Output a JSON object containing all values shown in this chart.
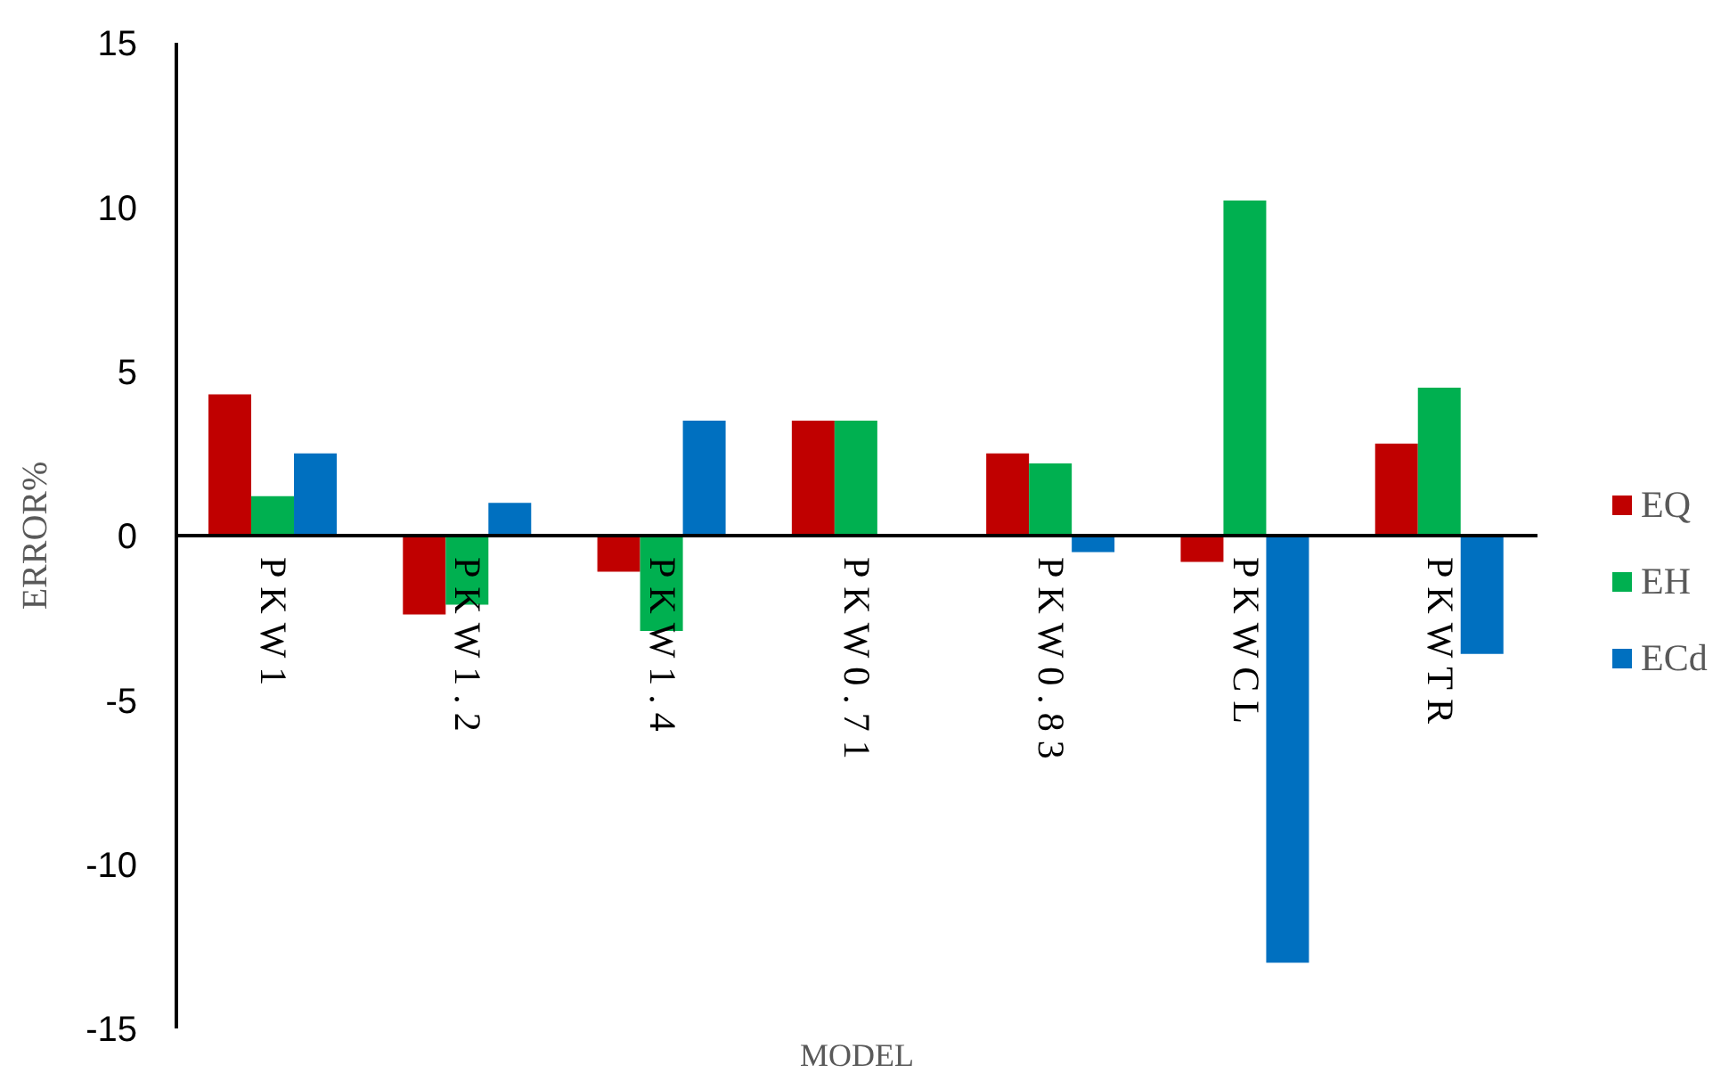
{
  "chart_data": {
    "type": "bar",
    "xlabel": "MODEL",
    "ylabel": "ERROR%",
    "categories": [
      "PKW1",
      "PKW1.2",
      "PKW1.4",
      "PKW0.71",
      "PKW0.83",
      "PKWCL",
      "PKWTR"
    ],
    "series": [
      {
        "name": "EQ",
        "color": "#c00000",
        "values": [
          4.3,
          -2.4,
          -1.1,
          3.5,
          2.5,
          -0.8,
          2.8
        ]
      },
      {
        "name": "EH",
        "color": "#00b050",
        "values": [
          1.2,
          -2.1,
          -2.9,
          3.5,
          2.2,
          10.2,
          4.5
        ]
      },
      {
        "name": "ECd",
        "color": "#0070c0",
        "values": [
          2.5,
          1.0,
          3.5,
          null,
          -0.5,
          -13.0,
          -3.6
        ]
      }
    ],
    "ylim": [
      -15,
      15
    ],
    "yticks": [
      -15,
      -10,
      -5,
      0,
      5,
      10,
      15
    ],
    "grid": false,
    "legend": "right"
  }
}
